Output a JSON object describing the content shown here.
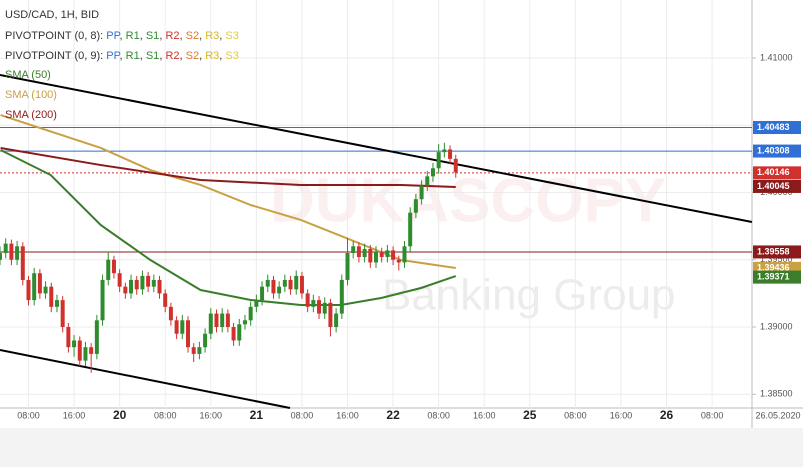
{
  "chart_data": {
    "type": "candlestick",
    "legend": {
      "title": "USD/CAD, 1H, BID",
      "separator": ", ",
      "pivots": [
        {
          "label": "PIVOTPOINT (0, 8): ",
          "items": [
            {
              "name": "PP",
              "color": "#2f6fd6"
            },
            {
              "name": "R1",
              "color": "#2e8b2e"
            },
            {
              "name": "S1",
              "color": "#2e8b2e"
            },
            {
              "name": "R2",
              "color": "#d0312d"
            },
            {
              "name": "S2",
              "color": "#e07b20"
            },
            {
              "name": "R3",
              "color": "#d9b81c"
            },
            {
              "name": "S3",
              "color": "#e3cc3a"
            }
          ]
        },
        {
          "label": "PIVOTPOINT (0, 9): ",
          "items": [
            {
              "name": "PP",
              "color": "#2f6fd6"
            },
            {
              "name": "R1",
              "color": "#2e8b2e"
            },
            {
              "name": "S1",
              "color": "#2e8b2e"
            },
            {
              "name": "R2",
              "color": "#d0312d"
            },
            {
              "name": "S2",
              "color": "#e07b20"
            },
            {
              "name": "R3",
              "color": "#d9b81c"
            },
            {
              "name": "S3",
              "color": "#e3cc3a"
            }
          ]
        }
      ]
    },
    "watermark": [
      "DUKASCOPY",
      "Banking Group"
    ],
    "date_label": "26.05.2020",
    "up_color": "#2e8b2e",
    "down_color": "#d0312d",
    "xlim": [
      3,
      135
    ],
    "ylim": [
      1.38398,
      1.41431
    ],
    "grid": true,
    "xticks": [
      {
        "value": 8,
        "label": "08:00"
      },
      {
        "value": 16,
        "label": "16:00"
      },
      {
        "value": 24,
        "label": "20"
      },
      {
        "value": 32,
        "label": "08:00"
      },
      {
        "value": 40,
        "label": "16:00"
      },
      {
        "value": 48,
        "label": "21"
      },
      {
        "value": 56,
        "label": "08:00"
      },
      {
        "value": 64,
        "label": "16:00"
      },
      {
        "value": 72,
        "label": "22"
      },
      {
        "value": 80,
        "label": "08:00"
      },
      {
        "value": 88,
        "label": "16:00"
      },
      {
        "value": 96,
        "label": "25"
      },
      {
        "value": 104,
        "label": "08:00"
      },
      {
        "value": 112,
        "label": "16:00"
      },
      {
        "value": 120,
        "label": "26"
      },
      {
        "value": 128,
        "label": "08:00"
      }
    ],
    "yticks": [
      {
        "value": 1.385,
        "label": "1.38500"
      },
      {
        "value": 1.39,
        "label": "1.39000"
      },
      {
        "value": 1.395,
        "label": "1.39500"
      },
      {
        "value": 1.4,
        "label": "1.40000"
      },
      {
        "value": 1.405,
        "label": "1.40500"
      },
      {
        "value": 1.41,
        "label": "1.41000"
      }
    ],
    "x": [
      3,
      4,
      5,
      6,
      7,
      8,
      9,
      10,
      11,
      12,
      13,
      14,
      15,
      16,
      17,
      18,
      19,
      20,
      21,
      22,
      23,
      24,
      25,
      26,
      27,
      28,
      29,
      30,
      31,
      32,
      33,
      34,
      35,
      36,
      37,
      38,
      39,
      40,
      41,
      42,
      43,
      44,
      45,
      46,
      47,
      48,
      49,
      50,
      51,
      52,
      53,
      54,
      55,
      56,
      57,
      58,
      59,
      60,
      61,
      62,
      63,
      64,
      65,
      66,
      67,
      68,
      69,
      70,
      71,
      72,
      73,
      74,
      75,
      76,
      77,
      78,
      79,
      80,
      81,
      82,
      83
    ],
    "ohlc": [
      [
        1.395,
        1.396,
        1.3946,
        1.3955
      ],
      [
        1.3955,
        1.3966,
        1.3951,
        1.3962
      ],
      [
        1.3962,
        1.3965,
        1.3946,
        1.395
      ],
      [
        1.395,
        1.3964,
        1.3946,
        1.396
      ],
      [
        1.396,
        1.3963,
        1.3931,
        1.3935
      ],
      [
        1.3935,
        1.3938,
        1.3916,
        1.392
      ],
      [
        1.392,
        1.3944,
        1.3916,
        1.394
      ],
      [
        1.394,
        1.3943,
        1.3921,
        1.3925
      ],
      [
        1.3925,
        1.3934,
        1.3921,
        1.393
      ],
      [
        1.393,
        1.3933,
        1.3911,
        1.3915
      ],
      [
        1.3915,
        1.3924,
        1.3911,
        1.392
      ],
      [
        1.392,
        1.3923,
        1.3896,
        1.39
      ],
      [
        1.39,
        1.3903,
        1.3881,
        1.3885
      ],
      [
        1.3885,
        1.3894,
        1.3878,
        1.389
      ],
      [
        1.389,
        1.3893,
        1.3871,
        1.3875
      ],
      [
        1.3875,
        1.3889,
        1.3871,
        1.3885
      ],
      [
        1.3885,
        1.3888,
        1.3866,
        1.388
      ],
      [
        1.388,
        1.3909,
        1.3876,
        1.3905
      ],
      [
        1.3905,
        1.3939,
        1.3901,
        1.3935
      ],
      [
        1.3935,
        1.3956,
        1.3931,
        1.395
      ],
      [
        1.395,
        1.3953,
        1.3936,
        1.394
      ],
      [
        1.394,
        1.3943,
        1.3926,
        1.393
      ],
      [
        1.393,
        1.3933,
        1.3921,
        1.3925
      ],
      [
        1.3925,
        1.3939,
        1.3921,
        1.3935
      ],
      [
        1.3935,
        1.3938,
        1.3924,
        1.3928
      ],
      [
        1.3928,
        1.3942,
        1.3924,
        1.3938
      ],
      [
        1.3938,
        1.3941,
        1.3926,
        1.393
      ],
      [
        1.393,
        1.3939,
        1.3926,
        1.3935
      ],
      [
        1.3935,
        1.3938,
        1.3921,
        1.3925
      ],
      [
        1.3925,
        1.3928,
        1.3911,
        1.3915
      ],
      [
        1.3915,
        1.3918,
        1.3901,
        1.3905
      ],
      [
        1.3905,
        1.3908,
        1.3891,
        1.3895
      ],
      [
        1.3895,
        1.3909,
        1.3891,
        1.3905
      ],
      [
        1.3905,
        1.3908,
        1.3881,
        1.3885
      ],
      [
        1.3885,
        1.3888,
        1.3874,
        1.388
      ],
      [
        1.388,
        1.3889,
        1.3876,
        1.3885
      ],
      [
        1.3885,
        1.3899,
        1.3881,
        1.3895
      ],
      [
        1.3895,
        1.3914,
        1.3891,
        1.391
      ],
      [
        1.391,
        1.3913,
        1.3896,
        1.39
      ],
      [
        1.39,
        1.3914,
        1.3896,
        1.391
      ],
      [
        1.391,
        1.3913,
        1.3896,
        1.39
      ],
      [
        1.39,
        1.3903,
        1.3886,
        1.389
      ],
      [
        1.389,
        1.3906,
        1.3886,
        1.3902
      ],
      [
        1.3902,
        1.3909,
        1.3898,
        1.3905
      ],
      [
        1.3905,
        1.3919,
        1.3901,
        1.3915
      ],
      [
        1.3915,
        1.3924,
        1.3911,
        1.392
      ],
      [
        1.392,
        1.3934,
        1.3916,
        1.393
      ],
      [
        1.393,
        1.3939,
        1.3926,
        1.3935
      ],
      [
        1.3935,
        1.3938,
        1.3921,
        1.3925
      ],
      [
        1.3925,
        1.3934,
        1.3921,
        1.393
      ],
      [
        1.393,
        1.3939,
        1.3926,
        1.3935
      ],
      [
        1.3935,
        1.3938,
        1.3924,
        1.3928
      ],
      [
        1.3928,
        1.3942,
        1.3924,
        1.3938
      ],
      [
        1.3938,
        1.3941,
        1.3921,
        1.3925
      ],
      [
        1.3925,
        1.3928,
        1.3911,
        1.3915
      ],
      [
        1.3915,
        1.3924,
        1.3911,
        1.392
      ],
      [
        1.392,
        1.3923,
        1.3906,
        1.391
      ],
      [
        1.391,
        1.3922,
        1.3906,
        1.3918
      ],
      [
        1.3918,
        1.3921,
        1.3893,
        1.39
      ],
      [
        1.39,
        1.3914,
        1.3896,
        1.391
      ],
      [
        1.391,
        1.3939,
        1.3906,
        1.3935
      ],
      [
        1.3935,
        1.3966,
        1.3931,
        1.3955
      ],
      [
        1.3955,
        1.3964,
        1.3951,
        1.396
      ],
      [
        1.396,
        1.3963,
        1.3948,
        1.3952
      ],
      [
        1.3952,
        1.3962,
        1.3948,
        1.3958
      ],
      [
        1.3958,
        1.3961,
        1.3944,
        1.3948
      ],
      [
        1.3948,
        1.396,
        1.3944,
        1.3956
      ],
      [
        1.3956,
        1.3959,
        1.3948,
        1.3952
      ],
      [
        1.3952,
        1.3961,
        1.3948,
        1.3957
      ],
      [
        1.3957,
        1.396,
        1.3946,
        1.395
      ],
      [
        1.395,
        1.3953,
        1.3942,
        1.3948
      ],
      [
        1.3948,
        1.3964,
        1.3944,
        1.396
      ],
      [
        1.396,
        1.3989,
        1.3956,
        1.3985
      ],
      [
        1.3985,
        1.3999,
        1.3981,
        1.3995
      ],
      [
        1.3995,
        1.4009,
        1.3991,
        1.4005
      ],
      [
        1.4005,
        1.4016,
        1.4001,
        1.4012
      ],
      [
        1.4012,
        1.4022,
        1.4008,
        1.4018
      ],
      [
        1.4018,
        1.4036,
        1.4014,
        1.403
      ],
      [
        1.403,
        1.4037,
        1.4026,
        1.4032
      ],
      [
        1.4032,
        1.4035,
        1.4021,
        1.4025
      ],
      [
        1.4025,
        1.4028,
        1.4011,
        1.4015
      ]
    ],
    "series": [
      {
        "name": "SMA (50)",
        "color": "#3a7d2a",
        "x": [
          3.1,
          11.9,
          20.7,
          29.4,
          38.2,
          47,
          55.8,
          62.8,
          69.9,
          76.9,
          83
        ],
        "values": [
          1.40316,
          1.4013,
          1.39758,
          1.39498,
          1.39275,
          1.39201,
          1.39164,
          1.39164,
          1.39216,
          1.3929,
          1.39379
        ]
      },
      {
        "name": "SMA (100)",
        "color": "#c9a042",
        "x": [
          3.1,
          20.7,
          29.4,
          38.2,
          47,
          55.8,
          64.6,
          73.4,
          83
        ],
        "values": [
          1.40576,
          1.40331,
          1.40167,
          1.40056,
          1.39907,
          1.39796,
          1.39647,
          1.39498,
          1.39439
        ]
      },
      {
        "name": "SMA (200)",
        "color": "#8b1a1a",
        "x": [
          3.1,
          20.7,
          38.2,
          55.8,
          73.4,
          83
        ],
        "values": [
          1.40331,
          1.40204,
          1.40093,
          1.40056,
          1.40056,
          1.40041
        ]
      }
    ],
    "levels": [
      {
        "value": 1.40483,
        "color": "#2f6fd6",
        "style": "solid"
      },
      {
        "value": 1.40308,
        "color": "#2f6fd6",
        "style": "solid"
      },
      {
        "value": 1.40146,
        "color": "#d0312d",
        "style": "dashed"
      },
      {
        "value": 1.40045,
        "color": "#8b1a1a",
        "style": "none"
      },
      {
        "value": 1.39558,
        "color": "#8b1a1a",
        "style": "solid"
      },
      {
        "value": 1.39436,
        "color": "#c9a042",
        "style": "none"
      },
      {
        "value": 1.39371,
        "color": "#3a7d2a",
        "style": "none"
      }
    ]
  }
}
